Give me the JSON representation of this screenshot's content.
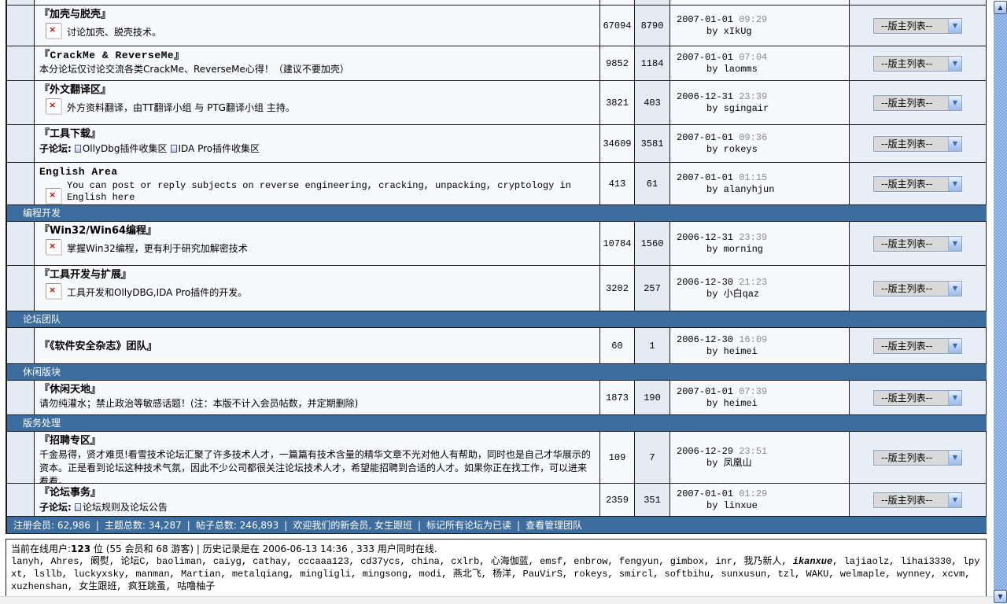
{
  "colors": {
    "section_bar": "#3D6D9E",
    "row_light": "#F7F9FC",
    "row_shaded": "#E5EBF5",
    "lastpost_time_text": "#8a8a8a",
    "broken_icon_x": "#d40000",
    "scrollbar_blue": "#7fa7e0"
  },
  "moderator_dropdown": {
    "label": "--版主列表--"
  },
  "icons": {
    "broken_image_x": "×",
    "chevron_down": "▼",
    "arrow_up": "▲",
    "arrow_down": "▼"
  },
  "sections": [
    "编程开发",
    "论坛团队",
    "休闲版块",
    "版务处理"
  ],
  "rows": [
    {
      "title": "『加壳与脱壳』",
      "desc": "讨论加壳、脱壳技术。",
      "topics": "67094",
      "posts": "8790",
      "date": "2007-01-01",
      "time": "09:29",
      "by": "by xIkUg"
    },
    {
      "title": "『CrackMe & ReverseMe』",
      "desc": "本分论坛仅讨论交流各类CrackMe、ReverseMe心得！（建议不要加壳）",
      "topics": "9852",
      "posts": "1184",
      "date": "2007-01-01",
      "time": "07:04",
      "by": "by laomms"
    },
    {
      "title": "『外文翻译区』",
      "desc": "外方资料翻译，由TT翻译小组 与 PTG翻译小组 主持。",
      "topics": "3821",
      "posts": "403",
      "date": "2006-12-31",
      "time": "23:39",
      "by": "by sgingair"
    },
    {
      "title": "『工具下载』",
      "sub_label": "子论坛:",
      "sub1": "OllyDbg插件收集区",
      "sub2": "IDA Pro插件收集区",
      "topics": "34609",
      "posts": "3581",
      "date": "2007-01-01",
      "time": "09:36",
      "by": "by rokeys"
    },
    {
      "title": "English Area",
      "desc": "You can post or reply subjects on reverse engineering, cracking, unpacking, cryptology in English here",
      "topics": "413",
      "posts": "61",
      "date": "2007-01-01",
      "time": "01:15",
      "by": "by alanyhjun"
    },
    {
      "title": "『Win32/Win64编程』",
      "desc": "掌握Win32编程，更有利于研究加解密技术",
      "topics": "10784",
      "posts": "1560",
      "date": "2006-12-31",
      "time": "23:39",
      "by": "by morning"
    },
    {
      "title": "『工具开发与扩展』",
      "desc": "工具开发和OllyDBG,IDA Pro插件的开发。",
      "topics": "3202",
      "posts": "257",
      "date": "2006-12-30",
      "time": "21:23",
      "by": "by 小白qaz"
    },
    {
      "title": "『《软件安全杂志》团队』",
      "topics": "60",
      "posts": "1",
      "date": "2006-12-30",
      "time": "16:09",
      "by": "by heimei"
    },
    {
      "title": "『休闲天地』",
      "desc": "请勿纯灌水；禁止政治等敏感话题！(注：本版不计入会员帖数，并定期删除)",
      "topics": "1873",
      "posts": "190",
      "date": "2007-01-01",
      "time": "07:39",
      "by": "by heimei"
    },
    {
      "title": "『招聘专区』",
      "desc": "千金易得，贤才难觅!看雪技术论坛汇聚了许多技术人才，一篇篇有技术含量的精华文章不光对他人有帮助，同时也是自己才华展示的资本。正是看到论坛这种技术气氛，因此不少公司都很关注论坛技术人才，希望能招聘到合适的人才。如果你正在找工作，可以进来看看。",
      "topics": "109",
      "posts": "7",
      "date": "2006-12-29",
      "time": "23:51",
      "by": "by 凤凰山"
    },
    {
      "title": "『论坛事务』",
      "sub_label": "子论坛:",
      "sub1": "论坛规则及论坛公告",
      "topics": "2359",
      "posts": "351",
      "date": "2007-01-01",
      "time": "01:29",
      "by": "by linxue"
    }
  ],
  "footer": {
    "sep": "|",
    "members": "注册会员: 62,986",
    "threads": "主题总数: 34,287",
    "posts": "帖子总数: 246,893",
    "welcome": "欢迎我们的新会员, 女生跟班",
    "mark_read": "标记所有论坛为已读",
    "view_staff": "查看管理团队"
  },
  "online": {
    "prefix": "当前在线用户:",
    "count": "123",
    "members_guests": " 位 (55 会员和 68 游客)",
    "sep": " | ",
    "history": "历史记录是在 2006-06-13 14:36 , 333 用户同时在线.",
    "users_1": "lanyh, Ahres, 阚熨, 论坛C, baoliman, caiyg, cathay, cccaaa123, cd37ycs, china, cxlrb, 心海伽蓝, emsf, enbrow, fengyun, gimbox, inr, 我乃新人, ",
    "users_highlight": "ikanxue",
    "users_2": ", lajiaolz, lihai3330, lpyxt, lsllb, luckyxsky, manman, Martian, metalqiang, mingligli, mingsong, modi, 燕北飞, 杨洋, PauVirS, rokeys, smircl, softbihu, sunxusun, tzl, WAKU, welmaple, wynney, xcvm, xuzhenshan, 女生跟班, 疯狂跳蚤, 咕噜柚子"
  }
}
